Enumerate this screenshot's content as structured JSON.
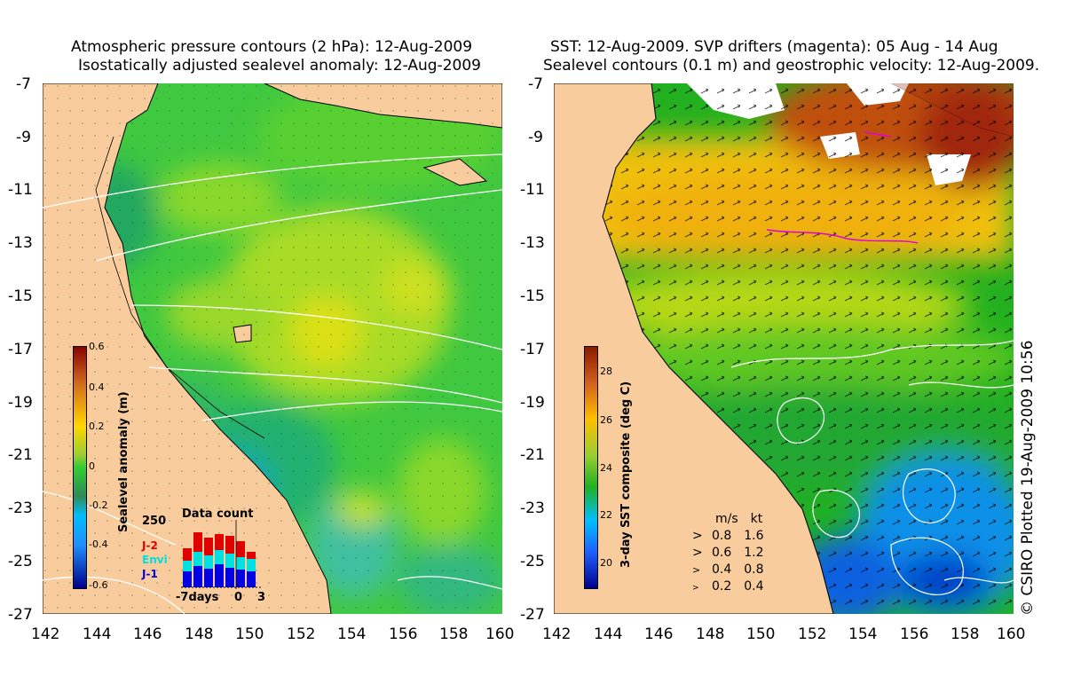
{
  "left_panel": {
    "title_line1": "Atmospheric pressure contours (2 hPa): 12-Aug-2009",
    "title_line2": "Isostatically adjusted sealevel anomaly: 12-Aug-2009",
    "colorbar": {
      "title": "Sealevel anomaly (m)",
      "ticks": [
        "0.6",
        "0.4",
        "0.2",
        "0",
        "-0.2",
        "-0.4",
        "-0.6"
      ]
    },
    "data_count": {
      "title": "Data count",
      "max_label": "250",
      "series_labels": [
        "J-2",
        "Envi",
        "J-1"
      ],
      "series_colors": [
        "#e00000",
        "#00e0e0",
        "#0000e0"
      ],
      "x_labels": [
        "-7days",
        "0",
        "3"
      ]
    }
  },
  "right_panel": {
    "title_line1": "SST: 12-Aug-2009. SVP drifters (magenta): 05 Aug - 14 Aug",
    "title_line2": "Sealevel contours (0.1 m) and geostrophic velocity: 12-Aug-2009.",
    "colorbar": {
      "title": "3-day SST composite (deg C)",
      "ticks": [
        "28",
        "26",
        "24",
        "22",
        "20"
      ]
    },
    "velocity_legend": {
      "header": [
        "m/s",
        "kt"
      ],
      "rows": [
        [
          "0.8",
          "1.6"
        ],
        [
          "0.6",
          "1.2"
        ],
        [
          "0.4",
          "0.8"
        ],
        [
          "0.2",
          "0.4"
        ]
      ]
    }
  },
  "axes": {
    "y_ticks": [
      "-7",
      "-9",
      "-11",
      "-13",
      "-15",
      "-17",
      "-19",
      "-21",
      "-23",
      "-25",
      "-27"
    ],
    "x_ticks": [
      "142",
      "144",
      "146",
      "148",
      "150",
      "152",
      "154",
      "156",
      "158",
      "160"
    ]
  },
  "credit": "© CSIRO Plotted 19-Aug-2009 10:56",
  "colors": {
    "land": "#f8cc9c",
    "coast": "#000000",
    "contour": "#ffffff",
    "drifter": "#e000e0"
  }
}
